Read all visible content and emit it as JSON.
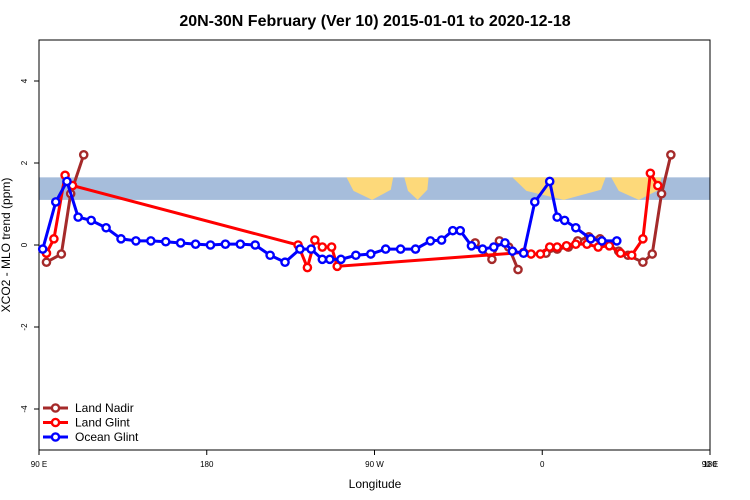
{
  "chart_data": {
    "type": "line",
    "title": "20N-30N February (Ver 10)   2015-01-01 to 2020-12-18",
    "xlabel": "Longitude",
    "ylabel": "XCO2 - MLO trend (ppm)",
    "xlim": [
      90,
      450
    ],
    "ylim": [
      -5,
      5
    ],
    "x_ticks": [
      {
        "value": 90,
        "label": "90 E"
      },
      {
        "value": 180,
        "label": "180"
      },
      {
        "value": 270,
        "label": "90 W"
      },
      {
        "value": 360,
        "label": "0"
      },
      {
        "value": 450,
        "label": "90 E"
      },
      {
        "value": 540,
        "label": "180"
      }
    ],
    "y_ticks": [
      {
        "value": -4,
        "label": "-4"
      },
      {
        "value": -2,
        "label": "-2"
      },
      {
        "value": 0,
        "label": "0"
      },
      {
        "value": 2,
        "label": "2"
      },
      {
        "value": 4,
        "label": "4"
      }
    ],
    "map_band": {
      "lat_range": [
        20,
        30
      ],
      "ymin": 1.1,
      "ymax": 1.65,
      "ocean_color": "#a6bddb",
      "land_color": "#fdd97a"
    },
    "legend": {
      "position": "bottom-left"
    },
    "series": [
      {
        "name": "Land Nadir",
        "color": "#a52a2a",
        "x": [
          94,
          102,
          107,
          114,
          120,
          324,
          333,
          337,
          342,
          347,
          352,
          357,
          362,
          368,
          374,
          379,
          385,
          391,
          396,
          401,
          406,
          414,
          419,
          424,
          429,
          434,
          440
        ],
        "y": [
          -0.42,
          -0.22,
          1.25,
          2.2,
          null,
          0.05,
          -0.35,
          0.1,
          -0.05,
          -0.6,
          null,
          null,
          -0.2,
          -0.1,
          -0.05,
          0.1,
          0.2,
          0.15,
          0.0,
          -0.15,
          -0.25,
          -0.42,
          -0.22,
          1.25,
          2.2,
          null,
          null
        ]
      },
      {
        "name": "Land Glint",
        "color": "#ff0000",
        "x": [
          94,
          98,
          104,
          108,
          229,
          234,
          238,
          242,
          247,
          250,
          350,
          354,
          359,
          364,
          368,
          373,
          378,
          384,
          390,
          396,
          402,
          408,
          414,
          418,
          422
        ],
        "y": [
          -0.2,
          0.15,
          1.7,
          1.45,
          0.0,
          -0.55,
          0.12,
          -0.05,
          -0.05,
          -0.52,
          -0.18,
          -0.22,
          -0.22,
          -0.05,
          -0.05,
          -0.02,
          0.02,
          0.02,
          -0.05,
          -0.02,
          -0.2,
          -0.25,
          0.15,
          1.75,
          1.45
        ]
      },
      {
        "name": "Ocean Glint",
        "color": "#0000ff",
        "x": [
          92,
          99,
          105,
          111,
          118,
          126,
          134,
          142,
          150,
          158,
          166,
          174,
          182,
          190,
          198,
          206,
          214,
          222,
          230,
          236,
          242,
          246,
          252,
          260,
          268,
          276,
          284,
          292,
          300,
          306,
          312,
          316,
          322,
          328,
          334,
          340,
          344,
          350,
          356,
          364,
          368,
          372,
          378,
          386,
          392,
          400,
          410,
          418,
          426,
          434,
          442,
          450,
          458,
          466,
          474,
          482,
          490
        ],
        "y": [
          -0.1,
          1.05,
          1.55,
          0.68,
          0.6,
          0.42,
          0.15,
          0.1,
          0.1,
          0.08,
          0.05,
          0.02,
          0.0,
          0.02,
          0.02,
          0.0,
          -0.25,
          -0.42,
          -0.1,
          -0.1,
          -0.35,
          -0.35,
          -0.35,
          -0.25,
          -0.22,
          -0.1,
          -0.1,
          -0.1,
          0.1,
          0.12,
          0.35,
          0.35,
          -0.02,
          -0.1,
          -0.05,
          0.05,
          -0.15,
          -0.2,
          1.05,
          1.55,
          0.68,
          0.6,
          0.42,
          0.15,
          0.1,
          0.1,
          null,
          null,
          null,
          null,
          null,
          null,
          null,
          null,
          null,
          null,
          null
        ]
      }
    ]
  }
}
